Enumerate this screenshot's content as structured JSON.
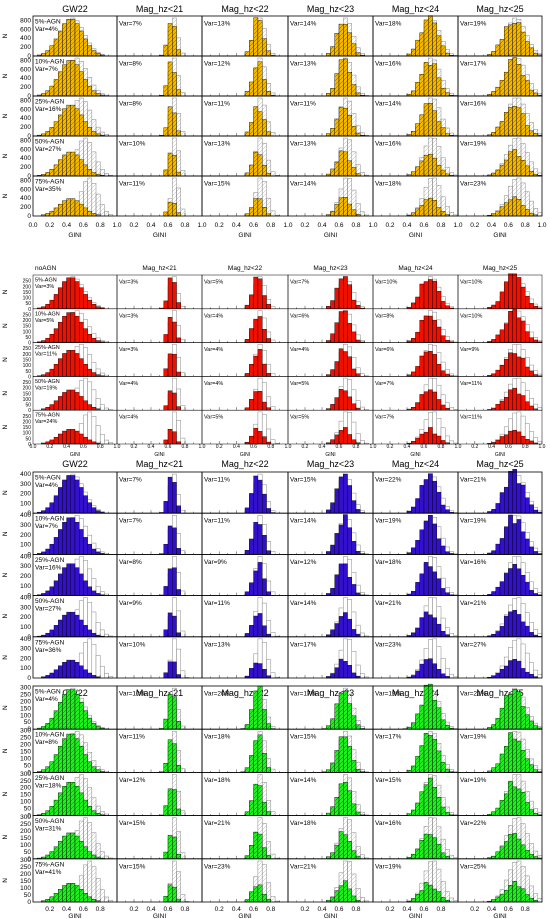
{
  "chart_data": [
    {
      "type": "bar",
      "block": "orange",
      "fill": "#f5b800",
      "hatched": true,
      "ytick_labels": [
        "0",
        "200",
        "400",
        "600",
        "800"
      ],
      "ylabel": "N",
      "xlabel": "GINI",
      "xtick_labels": [
        "0.0",
        "0.2",
        "0.4",
        "0.6",
        "0.8",
        "1.0"
      ],
      "xlim": [
        0,
        1
      ],
      "ylim": [
        0,
        900
      ],
      "columns": [
        "GW22",
        "Mag_hz<21",
        "Mag_hz<22",
        "Mag_hz<23",
        "Mag_hz<24",
        "Mag_hz<25"
      ],
      "rows": [
        {
          "agn": "5%-AGN",
          "var": [
            "Var=4%",
            "Var=7%",
            "Var=13%",
            "Var=14%",
            "Var=18%",
            "Var=19%"
          ]
        },
        {
          "agn": "10%-AGN",
          "var": [
            "Var=7%",
            "Var=8%",
            "Var=12%",
            "Var=13%",
            "Var=16%",
            "Var=17%"
          ]
        },
        {
          "agn": "25%-AGN",
          "var": [
            "Var=16%",
            "Var=8%",
            "Var=11%",
            "Var=11%",
            "Var=14%",
            "Var=16%"
          ]
        },
        {
          "agn": "50%-AGN",
          "var": [
            "Var=27%",
            "Var=10%",
            "Var=13%",
            "Var=13%",
            "Var=16%",
            "Var=19%"
          ]
        },
        {
          "agn": "75%-AGN",
          "var": [
            "Var=35%",
            "Var=11%",
            "Var=15%",
            "Var=14%",
            "Var=18%",
            "Var=23%"
          ]
        }
      ]
    },
    {
      "type": "bar",
      "block": "red",
      "fill": "#ee1100",
      "hatched": false,
      "ytick_labels": [
        "0",
        "50",
        "100",
        "150",
        "200",
        "250",
        "300"
      ],
      "ylabel": "N",
      "xlabel": "GINI",
      "xtick_labels": [
        "0.0",
        "0.2",
        "0.4",
        "0.6",
        "0.8",
        "1.0"
      ],
      "xlim": [
        0,
        1
      ],
      "ylim": [
        0,
        300
      ],
      "columns": [
        "noAGN",
        "Mag_hz<21",
        "Mag_hz<22",
        "Mag_hz<23",
        "Mag_hz<24",
        "Mag_hz<25"
      ],
      "rows": [
        {
          "agn": "5%-AGN",
          "var": [
            "Var=3%",
            "Var=3%",
            "Var=5%",
            "Var=7%",
            "Var=10%",
            "Var=10%"
          ]
        },
        {
          "agn": "10%-AGN",
          "var": [
            "Var=5%",
            "Var=3%",
            "Var=4%",
            "Var=6%",
            "Var=8%",
            "Var=10%"
          ]
        },
        {
          "agn": "25%-AGN",
          "var": [
            "Var=11%",
            "Var=3%",
            "Var=4%",
            "Var=4%",
            "Var=6%",
            "Var=9%"
          ]
        },
        {
          "agn": "50%-AGN",
          "var": [
            "Var=19%",
            "Var=4%",
            "Var=4%",
            "Var=5%",
            "Var=7%",
            "Var=11%"
          ]
        },
        {
          "agn": "75%-AGN",
          "var": [
            "Var=24%",
            "Var=4%",
            "Var=5%",
            "Var=5%",
            "Var=7%",
            "Var=11%"
          ]
        }
      ]
    },
    {
      "type": "bar",
      "block": "blue",
      "fill": "#3311cc",
      "hatched": false,
      "ytick_labels": [
        "0",
        "100",
        "200",
        "300",
        "400"
      ],
      "ylabel": "N",
      "xlabel": "",
      "xtick_labels": [],
      "xlim": [
        0,
        1
      ],
      "ylim": [
        0,
        420
      ],
      "columns": [
        "GW22",
        "Mag_hz<21",
        "Mag_hz<22",
        "Mag_hz<23",
        "Mag_hz<24",
        "Mag_hz<25"
      ],
      "rows": [
        {
          "agn": "5%-AGN",
          "var": [
            "Var=4%",
            "Var=7%",
            "Var=11%",
            "Var=15%",
            "Var=22%",
            "Var=21%"
          ]
        },
        {
          "agn": "10%-AGN",
          "var": [
            "Var=7%",
            "Var=7%",
            "Var=11%",
            "Var=14%",
            "Var=19%",
            "Var=19%"
          ]
        },
        {
          "agn": "25%-AGN",
          "var": [
            "Var=16%",
            "Var=8%",
            "Var=9%",
            "Var=12%",
            "Var=18%",
            "Var=16%"
          ]
        },
        {
          "agn": "50%-AGN",
          "var": [
            "Var=27%",
            "Var=9%",
            "Var=11%",
            "Var=14%",
            "Var=21%",
            "Var=21%"
          ]
        },
        {
          "agn": "75%-AGN",
          "var": [
            "Var=36%",
            "Var=10%",
            "Var=13%",
            "Var=17%",
            "Var=23%",
            "Var=27%"
          ]
        }
      ]
    },
    {
      "type": "bar",
      "block": "green",
      "fill": "#22ee22",
      "hatched": true,
      "ytick_labels": [
        "0",
        "50",
        "100",
        "150",
        "200",
        "250",
        "300"
      ],
      "ylabel": "N",
      "xlabel": "GINI",
      "xtick_labels": [
        "0.2",
        "0.4",
        "0.6",
        "0.8"
      ],
      "xlim": [
        0,
        1
      ],
      "ylim": [
        0,
        310
      ],
      "columns": [
        "GW22",
        "Mag_hz<21",
        "Mag_hz<22",
        "Mag_hz<23",
        "Mag_hz<24",
        "Mag_hz<25"
      ],
      "rows": [
        {
          "agn": "5%-AGN",
          "var": [
            "Var=4%",
            "Var=10%",
            "Var=20%",
            "Var=17%",
            "Var=19%",
            "Var=22%"
          ]
        },
        {
          "agn": "10%-AGN",
          "var": [
            "Var=8%",
            "Var=11%",
            "Var=18%",
            "Var=15%",
            "Var=17%",
            "Var=19%"
          ]
        },
        {
          "agn": "25%-AGN",
          "var": [
            "Var=18%",
            "Var=12%",
            "Var=18%",
            "Var=14%",
            "Var=15%",
            "Var=19%"
          ]
        },
        {
          "agn": "50%-AGN",
          "var": [
            "Var=31%",
            "Var=15%",
            "Var=21%",
            "Var=18%",
            "Var=16%",
            "Var=22%"
          ]
        },
        {
          "agn": "75%-AGN",
          "var": [
            "Var=41%",
            "Var=15%",
            "Var=23%",
            "Var=21%",
            "Var=19%",
            "Var=25%"
          ]
        }
      ]
    }
  ]
}
